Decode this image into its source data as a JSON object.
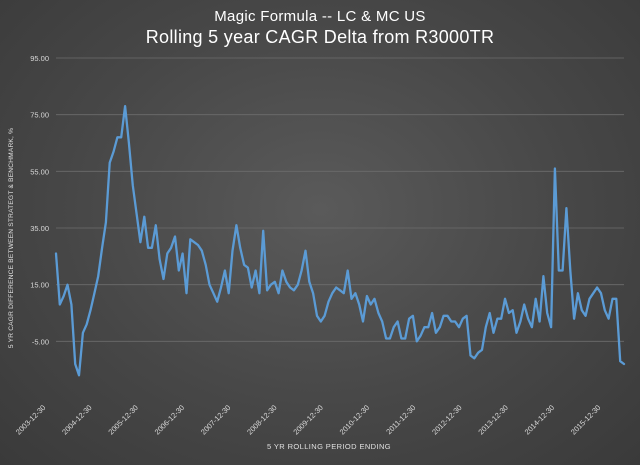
{
  "chart_data": {
    "type": "line",
    "title": "Magic Formula -- LC & MC US",
    "subtitle": "Rolling 5 year CAGR Delta from R3000TR",
    "xlabel": "5 YR ROLLING PERIOD ENDING",
    "ylabel": "5 YR CAGR DIFFERENCE BETWEEN STRATEGT & BENCHMARK, %",
    "ylim": [
      -25,
      95
    ],
    "yticks": [
      "95.00",
      "75.00",
      "55.00",
      "35.00",
      "15.00",
      "-5.00"
    ],
    "ytick_values": [
      95,
      75,
      55,
      35,
      15,
      -5
    ],
    "xlim": [
      0,
      148
    ],
    "xticks": [
      "2003-12-30",
      "2004-12-30",
      "2005-12-30",
      "2006-12-30",
      "2007-12-30",
      "2008-12-30",
      "2009-12-30",
      "2010-12-30",
      "2011-12-30",
      "2012-12-30",
      "2013-12-30",
      "2014-12-30",
      "2015-12-30"
    ],
    "grid": true,
    "line_color": "#5b9bd5",
    "series": [
      {
        "values": [
          26,
          8,
          11,
          15,
          8,
          -13,
          -17,
          -2,
          1,
          6,
          12,
          18,
          28,
          37,
          58,
          62,
          67,
          67,
          78,
          65,
          50,
          40,
          30,
          39,
          28,
          28,
          36,
          24,
          17,
          26,
          28,
          32,
          20,
          26,
          12,
          31,
          30,
          29,
          27,
          22,
          15,
          12,
          9,
          14,
          20,
          12,
          27,
          36,
          28,
          22,
          21,
          14,
          20,
          12,
          34,
          13,
          15,
          16,
          12,
          20,
          16,
          14,
          13,
          15,
          20,
          27,
          16,
          12,
          4,
          2,
          4,
          9,
          12,
          14,
          13,
          12,
          20,
          10,
          12,
          8,
          2,
          11,
          8,
          10,
          5,
          2,
          -4,
          -4,
          0,
          2,
          -4,
          -4,
          3,
          4,
          -5,
          -3,
          0,
          0,
          5,
          -2,
          0,
          4,
          4,
          2,
          2,
          0,
          3,
          4,
          -10,
          -11,
          -9,
          -8,
          0,
          5,
          -2,
          3,
          3,
          10,
          5,
          6,
          -2,
          2,
          8,
          3,
          0,
          10,
          2,
          18,
          5,
          0,
          56,
          20,
          20,
          42,
          20,
          3,
          12,
          6,
          4,
          10,
          12,
          14,
          12,
          6,
          3,
          10,
          10,
          -12,
          -13
        ]
      }
    ]
  }
}
